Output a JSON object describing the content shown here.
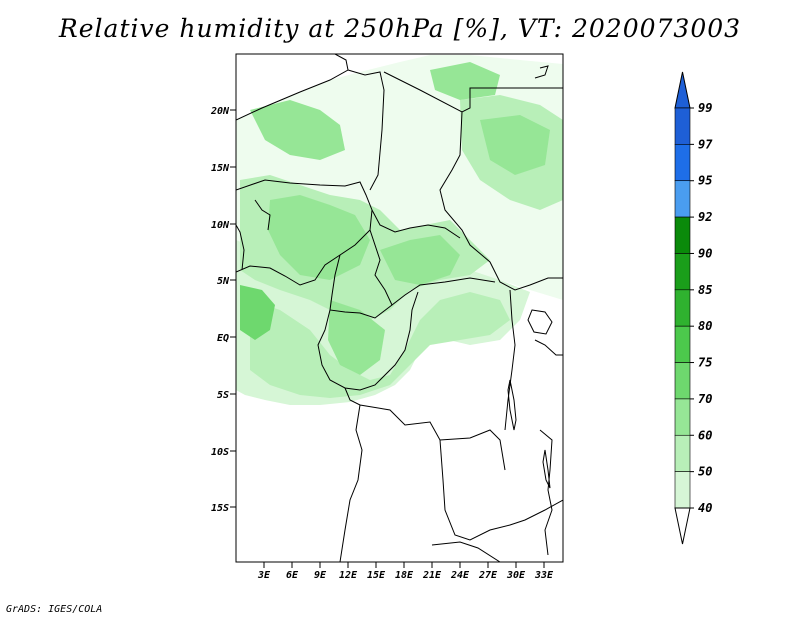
{
  "title": "Relative humidity at 250hPa [%], VT: 2020073003",
  "credit": "GrADS: IGES/COLA",
  "map": {
    "lon_range": [
      0,
      36
    ],
    "lat_range": [
      -20,
      24.5
    ],
    "lat_labels": [
      "20N",
      "15N",
      "10N",
      "5N",
      "EQ",
      "5S",
      "10S",
      "15S"
    ],
    "lon_labels": [
      "3E",
      "6E",
      "9E",
      "12E",
      "15E",
      "18E",
      "21E",
      "24E",
      "27E",
      "30E",
      "33E"
    ]
  },
  "colorbar": {
    "levels": [
      "99",
      "97",
      "95",
      "92",
      "90",
      "85",
      "80",
      "75",
      "70",
      "60",
      "50",
      "40"
    ],
    "colors": [
      "#1e5fd6",
      "#1e6ee8",
      "#4a9df0",
      "#0a8a0a",
      "#1a9e1a",
      "#2fb22f",
      "#4cc94c",
      "#6ed86e",
      "#96e696",
      "#b8efb8",
      "#d6f6d6",
      "#eefcee"
    ]
  }
}
